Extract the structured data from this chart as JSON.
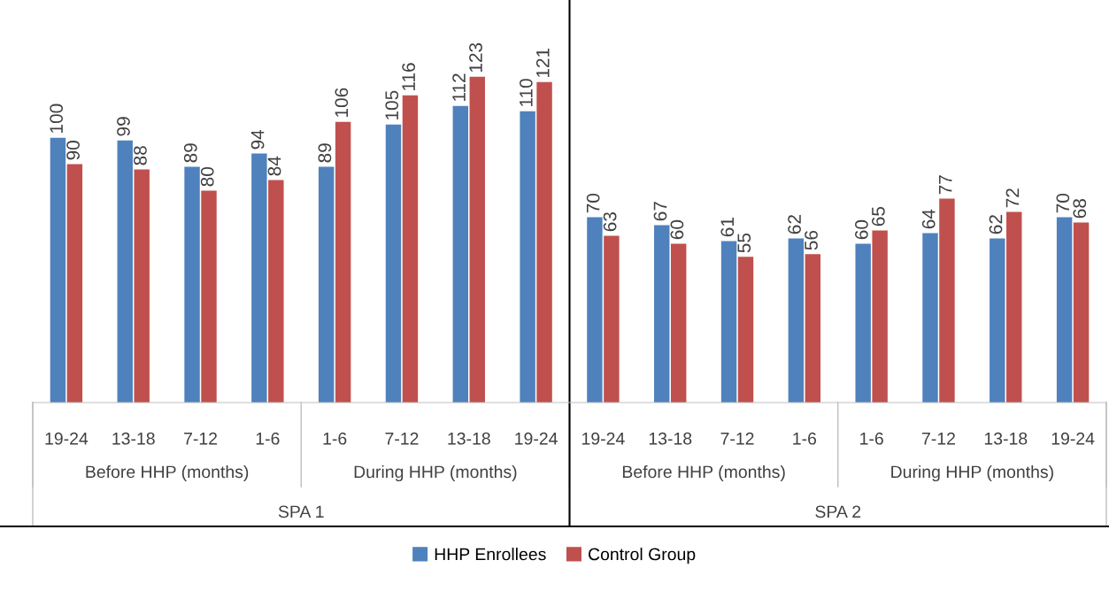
{
  "chart_data": {
    "type": "bar",
    "categories": [
      "19-24",
      "13-18",
      "7-12",
      "1-6",
      "1-6",
      "7-12",
      "13-18",
      "19-24",
      "19-24",
      "13-18",
      "7-12",
      "1-6",
      "1-6",
      "7-12",
      "13-18",
      "19-24"
    ],
    "series": [
      {
        "name": "HHP Enrollees",
        "color": "#4f81bd",
        "values": [
          100,
          99,
          89,
          94,
          89,
          105,
          112,
          110,
          70,
          67,
          61,
          62,
          60,
          64,
          62,
          70
        ]
      },
      {
        "name": "Control Group",
        "color": "#c0504d",
        "values": [
          90,
          88,
          80,
          84,
          106,
          116,
          123,
          121,
          63,
          60,
          55,
          56,
          65,
          77,
          72,
          68
        ]
      }
    ],
    "annotations": [
      "Before HHP (months)",
      "During HHP (months)",
      "Before HHP (months)",
      "During HHP (months)",
      "SPA 1",
      "SPA 2"
    ],
    "tick_labels": "x",
    "grid": false,
    "data_labels": true,
    "legend": "bottom"
  }
}
